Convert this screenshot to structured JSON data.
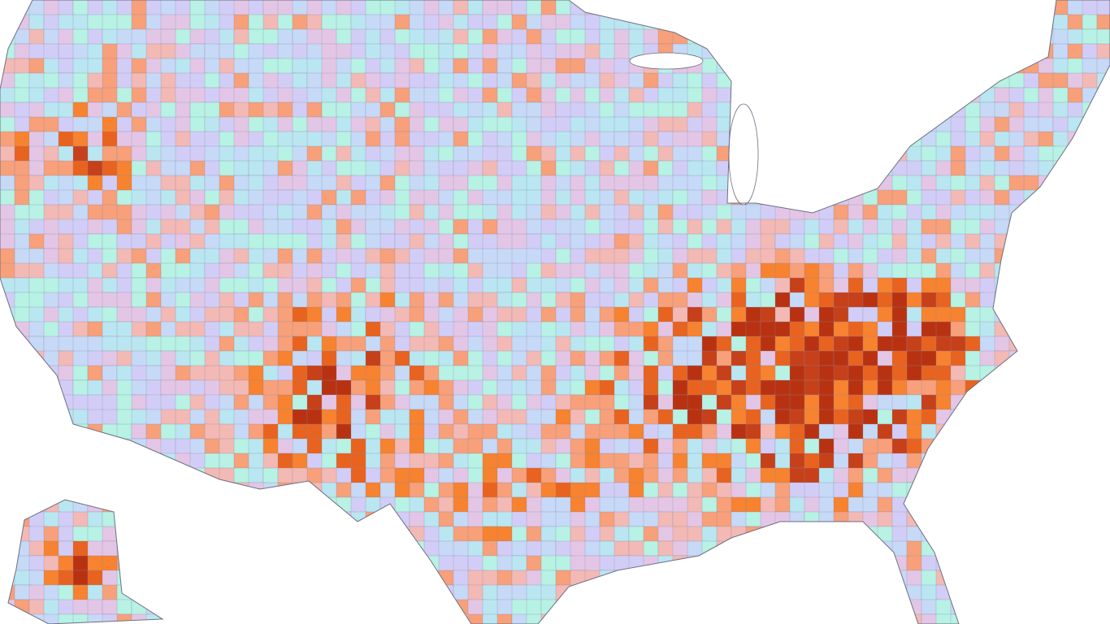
{
  "map": {
    "type": "choropleth",
    "geography": "US counties",
    "palette": [
      "#c6d9f7",
      "#d2cdf6",
      "#b7f2e4",
      "#b9e6f1",
      "#e3c6e6",
      "#f3b9b5",
      "#f7a07a",
      "#f7822f",
      "#e8631f",
      "#c6401a",
      "#b83212"
    ],
    "missing_color": "#ffffff",
    "water_color": "#ffffff"
  }
}
